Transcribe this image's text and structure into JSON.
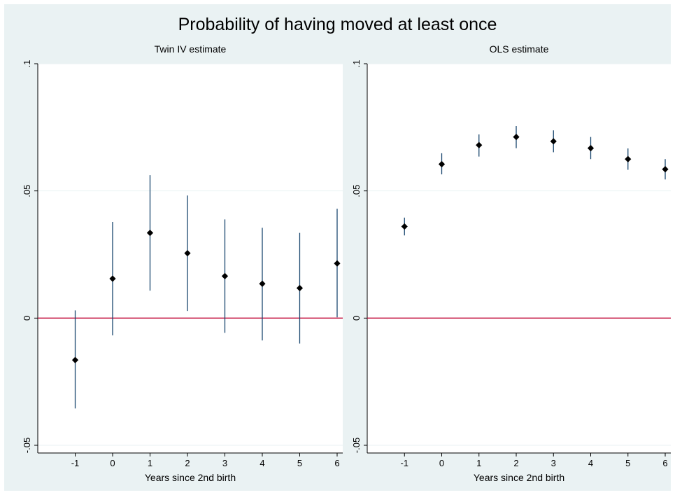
{
  "figure": {
    "title": "Probability of having moved at least once",
    "background": "#eaf2f3",
    "plot_background": "#ffffff",
    "marker_color": "#000000",
    "ci_color": "#1a476f",
    "zero_line_color": "#c10534",
    "grid_color": "#eaf2f3"
  },
  "chart_data": [
    {
      "type": "scatter",
      "title": "Twin IV estimate",
      "xlabel": "Years since 2nd birth",
      "ylabel": "",
      "x": [
        -1,
        0,
        1,
        2,
        3,
        4,
        5,
        6
      ],
      "y": [
        -0.0165,
        0.0155,
        0.0335,
        0.0255,
        0.0165,
        0.0135,
        0.0118,
        0.0215
      ],
      "ci_low": [
        -0.0355,
        -0.0068,
        0.0108,
        0.0028,
        -0.0058,
        -0.0088,
        -0.01,
        0.0003
      ],
      "ci_high": [
        0.003,
        0.0378,
        0.0562,
        0.0482,
        0.0388,
        0.0355,
        0.0335,
        0.043
      ],
      "xlim": [
        -2,
        6.15
      ],
      "ylim": [
        -0.05,
        0.1
      ],
      "xticks": [
        "-1",
        "0",
        "1",
        "2",
        "3",
        "4",
        "5",
        "6"
      ],
      "yticks": [
        "-.05",
        "0",
        ".05",
        ".1"
      ],
      "reference_line_y": 0,
      "grid": true
    },
    {
      "type": "scatter",
      "title": "OLS estimate",
      "xlabel": "Years since 2nd birth",
      "ylabel": "",
      "x": [
        -1,
        0,
        1,
        2,
        3,
        4,
        5,
        6
      ],
      "y": [
        0.036,
        0.0605,
        0.068,
        0.0712,
        0.0695,
        0.0668,
        0.0625,
        0.0585
      ],
      "ci_low": [
        0.0325,
        0.0565,
        0.0635,
        0.0668,
        0.0652,
        0.0625,
        0.0583,
        0.0545
      ],
      "ci_high": [
        0.0395,
        0.0648,
        0.0722,
        0.0755,
        0.0738,
        0.0712,
        0.0667,
        0.0625
      ],
      "xlim": [
        -2,
        6.15
      ],
      "ylim": [
        -0.05,
        0.1
      ],
      "xticks": [
        "-1",
        "0",
        "1",
        "2",
        "3",
        "4",
        "5",
        "6"
      ],
      "yticks": [
        "-.05",
        "0",
        ".05",
        ".1"
      ],
      "reference_line_y": 0,
      "grid": true
    }
  ]
}
